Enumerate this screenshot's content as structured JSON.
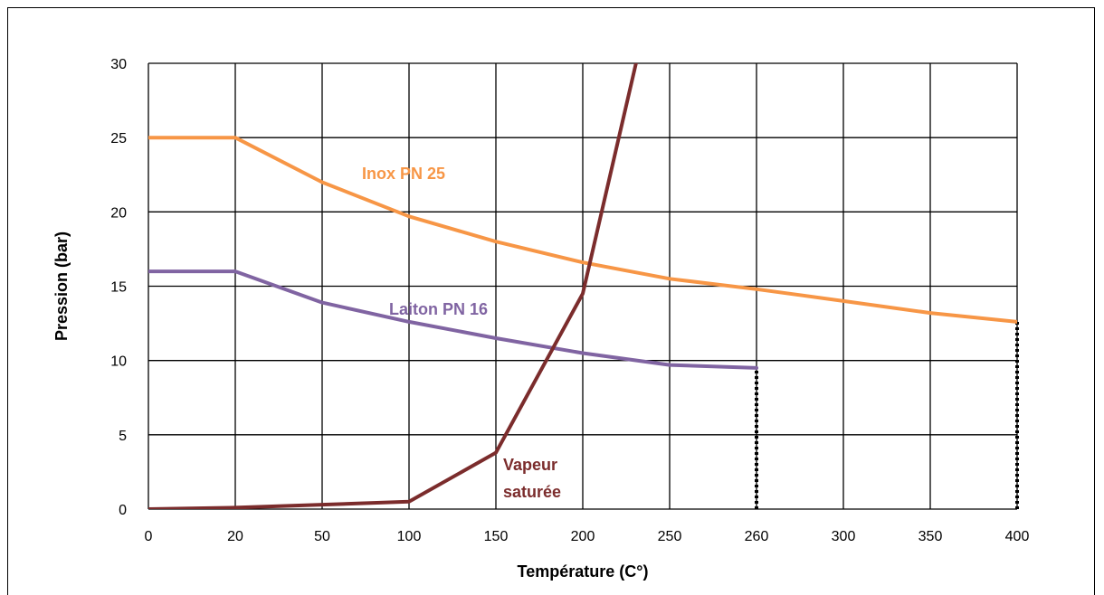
{
  "chart_data": {
    "type": "line",
    "xlabel": "Température (C°)",
    "ylabel": "Pression (bar)",
    "categories": [
      "0",
      "20",
      "50",
      "100",
      "150",
      "200",
      "250",
      "260",
      "300",
      "350",
      "400"
    ],
    "ylim": [
      0,
      30
    ],
    "y_ticks": [
      0,
      5,
      10,
      15,
      20,
      25,
      30
    ],
    "grid": true,
    "legend": "none",
    "series": [
      {
        "name": "Inox PN 25",
        "color": "#F79646",
        "points": [
          {
            "x": "0",
            "y": 25
          },
          {
            "x": "20",
            "y": 25
          },
          {
            "x": "50",
            "y": 22
          },
          {
            "x": "100",
            "y": 19.7
          },
          {
            "x": "150",
            "y": 18
          },
          {
            "x": "200",
            "y": 16.6
          },
          {
            "x": "250",
            "y": 15.5
          },
          {
            "x": "260",
            "y": 14.8
          },
          {
            "x": "300",
            "y": 14
          },
          {
            "x": "350",
            "y": 13.2
          },
          {
            "x": "400",
            "y": 12.6
          }
        ]
      },
      {
        "name": "Laiton PN 16",
        "color": "#8064A2",
        "points": [
          {
            "x": "0",
            "y": 16
          },
          {
            "x": "20",
            "y": 16
          },
          {
            "x": "50",
            "y": 13.9
          },
          {
            "x": "100",
            "y": 12.6
          },
          {
            "x": "150",
            "y": 11.5
          },
          {
            "x": "200",
            "y": 10.5
          },
          {
            "x": "250",
            "y": 9.7
          },
          {
            "x": "260",
            "y": 9.5
          }
        ]
      },
      {
        "name": "Vapeur saturée",
        "color": "#7B2C2C",
        "points": [
          {
            "x": "0",
            "y": 0
          },
          {
            "x": "20",
            "y": 0.1
          },
          {
            "x": "50",
            "y": 0.3
          },
          {
            "x": "100",
            "y": 0.5
          },
          {
            "x": "150",
            "y": 3.8
          },
          {
            "x": "200",
            "y": 14.5
          },
          {
            "x": "250",
            "y": 39.8
          }
        ]
      }
    ],
    "limit_lines": [
      {
        "x": "260",
        "y_from": 0,
        "y_to": 9.5,
        "style": "dotted"
      },
      {
        "x": "400",
        "y_from": 0,
        "y_to": 12.6,
        "style": "dotted"
      }
    ],
    "annotations": [
      {
        "text": "Inox PN 25",
        "series": "Inox PN 25"
      },
      {
        "text": "Laiton PN 16",
        "series": "Laiton PN 16"
      },
      {
        "text": "Vapeur saturée",
        "series": "Vapeur saturée",
        "lines": [
          "Vapeur",
          "saturée"
        ]
      }
    ]
  }
}
